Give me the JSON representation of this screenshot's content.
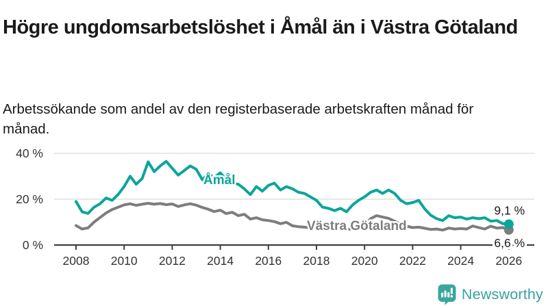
{
  "chart_data": {
    "type": "line",
    "title": "Högre ungdomsarbetslöshet i Åmål än i Västra Götaland",
    "subtitle": "Arbetssökande som andel av den registerbaserade arbetskraften månad för månad.",
    "x_unit": "year",
    "x_start": 2008.0,
    "x_step": 0.25,
    "xlim": [
      2007.1,
      2027.05
    ],
    "ylim": [
      0,
      43
    ],
    "grid": "horizontal",
    "legend": "inline-labels",
    "xticks": [
      2008,
      2010,
      2012,
      2014,
      2016,
      2018,
      2020,
      2022,
      2024,
      2026
    ],
    "yticks": [
      {
        "value": 0,
        "label": "0 %"
      },
      {
        "value": 20,
        "label": "20 %"
      },
      {
        "value": 40,
        "label": "40 %"
      }
    ],
    "grid_color": "#d9d9d9",
    "axis_color": "#3f3f3f",
    "tick_label_color": "#333333",
    "end_label_color": "#1a1a1a",
    "series": [
      {
        "name": "Åmål",
        "color": "#0ba59b",
        "label_x": 2013.3,
        "label_y_pct": 26.5,
        "end_label": "9,1 %",
        "end_value": 9.1,
        "values": [
          19.0,
          14.5,
          13.8,
          16.5,
          18.0,
          20.5,
          19.5,
          22.0,
          25.5,
          30.0,
          26.5,
          29.0,
          36.3,
          32.0,
          34.5,
          36.5,
          33.5,
          30.5,
          32.5,
          34.5,
          33.0,
          28.5,
          31.0,
          29.5,
          31.5,
          28.5,
          27.0,
          26.5,
          24.5,
          22.0,
          25.5,
          23.5,
          26.0,
          27.0,
          24.0,
          25.5,
          24.5,
          23.0,
          22.5,
          21.0,
          19.5,
          16.5,
          16.0,
          15.0,
          16.0,
          14.5,
          17.5,
          19.5,
          21.0,
          23.0,
          24.0,
          22.5,
          24.0,
          22.5,
          19.5,
          18.0,
          18.5,
          19.5,
          15.8,
          13.0,
          11.5,
          10.7,
          12.8,
          11.9,
          12.2,
          11.3,
          11.9,
          11.5,
          11.9,
          10.4,
          10.7,
          9.3,
          9.1
        ]
      },
      {
        "name": "Västra Götaland",
        "color": "#7d7d7d",
        "label_x": 2017.6,
        "label_y_pct": 6.5,
        "end_label": "6,6 %",
        "end_value": 6.6,
        "values": [
          8.5,
          7.0,
          7.5,
          10.0,
          12.0,
          14.0,
          15.5,
          16.5,
          17.5,
          18.0,
          17.3,
          17.8,
          18.2,
          17.8,
          18.1,
          17.6,
          17.9,
          16.8,
          17.5,
          18.0,
          17.4,
          16.4,
          15.6,
          14.6,
          15.2,
          13.7,
          14.3,
          12.8,
          13.4,
          11.3,
          11.9,
          11.0,
          10.7,
          10.2,
          9.3,
          9.9,
          8.4,
          8.0,
          7.8,
          7.5,
          7.3,
          7.0,
          7.4,
          7.1,
          6.9,
          6.7,
          7.2,
          7.5,
          8.5,
          11.5,
          12.8,
          12.2,
          11.6,
          10.4,
          9.2,
          8.2,
          7.6,
          7.8,
          7.3,
          6.8,
          7.0,
          6.5,
          7.4,
          7.0,
          7.2,
          7.0,
          8.3,
          7.6,
          7.0,
          8.2,
          7.4,
          7.6,
          6.6
        ]
      }
    ]
  },
  "footer": {
    "brand": "Newsworthy",
    "brand_color": "#37a39a",
    "logo_icon": "bar-chart-speech-bubble"
  }
}
